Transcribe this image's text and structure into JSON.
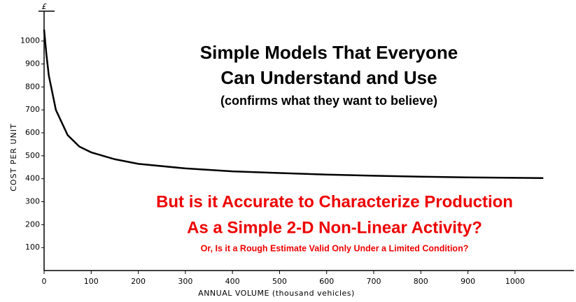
{
  "chart_data": {
    "type": "line",
    "y_axis_label": "COST PER UNIT",
    "y_unit_label": "£",
    "x_axis_label": "ANNUAL VOLUME (thousand vehicles)",
    "x": [
      0,
      5,
      10,
      25,
      50,
      75,
      100,
      150,
      200,
      300,
      400,
      500,
      600,
      700,
      800,
      900,
      1000,
      1060
    ],
    "values": [
      1050,
      940,
      850,
      700,
      590,
      540,
      515,
      485,
      465,
      445,
      432,
      425,
      418,
      413,
      409,
      406,
      404,
      403
    ],
    "color": "#000000",
    "xlim": [
      0,
      1125
    ],
    "ylim": [
      0,
      1130
    ],
    "xticks": [
      0,
      100,
      200,
      300,
      400,
      500,
      600,
      700,
      800,
      900,
      1000
    ],
    "yticks": [
      100,
      200,
      300,
      400,
      500,
      600,
      700,
      800,
      900,
      1000
    ],
    "annotations": [
      {
        "text": "Simple Models That Everyone",
        "color": "#000000"
      },
      {
        "text": "Can Understand and Use",
        "color": "#000000"
      },
      {
        "text": "(confirms what they want to believe)",
        "color": "#000000"
      },
      {
        "text": "But is it Accurate to Characterize Production",
        "color": "#ee0000"
      },
      {
        "text": "As a Simple 2-D Non-Linear Activity?",
        "color": "#ee0000"
      },
      {
        "text": "Or, Is it a Rough Estimate Valid Only Under a Limited Condition?",
        "color": "#ee0000"
      }
    ]
  }
}
